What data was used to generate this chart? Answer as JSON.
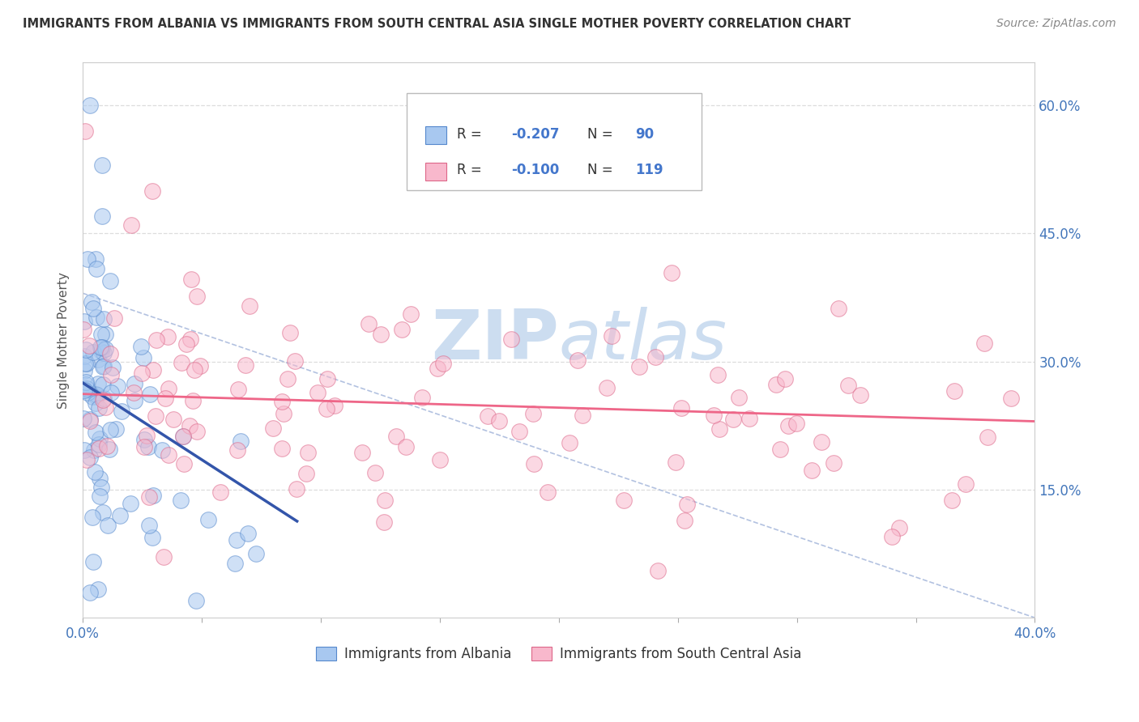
{
  "title": "IMMIGRANTS FROM ALBANIA VS IMMIGRANTS FROM SOUTH CENTRAL ASIA SINGLE MOTHER POVERTY CORRELATION CHART",
  "source": "Source: ZipAtlas.com",
  "ylabel": "Single Mother Poverty",
  "xlim": [
    0.0,
    0.4
  ],
  "ylim": [
    0.0,
    0.65
  ],
  "ytick_right_labels": [
    "15.0%",
    "30.0%",
    "45.0%",
    "60.0%"
  ],
  "ytick_right_vals": [
    0.15,
    0.3,
    0.45,
    0.6
  ],
  "color_albania": "#a8c8f0",
  "color_albania_edge": "#5588cc",
  "color_sca": "#f8b8cc",
  "color_sca_edge": "#dd6688",
  "color_albania_line": "#3355aa",
  "color_sca_line": "#ee6688",
  "color_dash": "#aabbdd",
  "watermark_zip": "ZIP",
  "watermark_atlas": "atlas",
  "watermark_color": "#ccddf0",
  "background_color": "#ffffff",
  "grid_color": "#dddddd",
  "title_color": "#333333",
  "source_color": "#888888",
  "tick_color": "#4477bb",
  "label_color": "#555555"
}
